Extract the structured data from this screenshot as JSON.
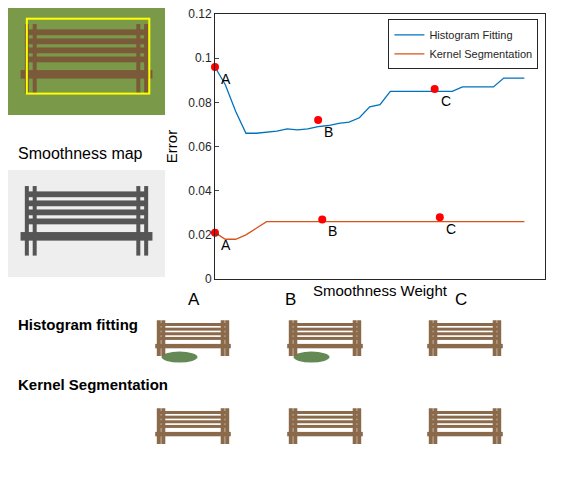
{
  "chart_data": {
    "type": "line",
    "x_label": "Smoothness Weight",
    "y_label": "Error",
    "x": [
      0,
      1,
      2,
      3,
      4,
      5,
      6,
      7,
      8,
      9,
      10,
      11,
      12,
      13,
      14,
      15,
      16,
      17,
      18,
      19,
      20,
      21,
      22,
      23,
      24,
      25,
      26,
      27,
      28,
      29,
      30
    ],
    "series": [
      {
        "name": "Histogram Fitting",
        "color": "#0072bd",
        "values": [
          0.096,
          0.088,
          0.076,
          0.066,
          0.066,
          0.0665,
          0.067,
          0.068,
          0.0675,
          0.068,
          0.069,
          0.0695,
          0.0705,
          0.071,
          0.073,
          0.078,
          0.079,
          0.085,
          0.085,
          0.085,
          0.085,
          0.085,
          0.085,
          0.085,
          0.087,
          0.087,
          0.087,
          0.087,
          0.091,
          0.091,
          0.091
        ]
      },
      {
        "name": "Kernel Segmentation",
        "color": "#d95319",
        "values": [
          0.021,
          0.018,
          0.018,
          0.02,
          0.023,
          0.026,
          0.026,
          0.026,
          0.026,
          0.026,
          0.026,
          0.026,
          0.026,
          0.026,
          0.026,
          0.026,
          0.026,
          0.026,
          0.026,
          0.026,
          0.026,
          0.026,
          0.026,
          0.026,
          0.026,
          0.026,
          0.026,
          0.026,
          0.026,
          0.026,
          0.026
        ]
      }
    ],
    "annotations": [
      {
        "text": "A",
        "x": 0,
        "y": 0.096
      },
      {
        "text": "B",
        "x": 10,
        "y": 0.072
      },
      {
        "text": "C",
        "x": 21.3,
        "y": 0.086
      },
      {
        "text": "A",
        "x": 0,
        "y": 0.021
      },
      {
        "text": "B",
        "x": 10.4,
        "y": 0.027
      },
      {
        "text": "C",
        "x": 21.8,
        "y": 0.028
      }
    ],
    "xlim": [
      0,
      32
    ],
    "xticks": [],
    "ylim": [
      0,
      0.12
    ],
    "yticks": [
      0,
      0.02,
      0.04,
      0.06,
      0.08,
      0.1,
      0.12
    ],
    "tick_labels": "y",
    "grid": false,
    "legend": "upper right"
  },
  "figure": {
    "side_caption": "Smoothness map",
    "result_columns": [
      "A",
      "B",
      "C"
    ],
    "result_rows": [
      "Histogram fitting",
      "Kernel Segmentation"
    ]
  }
}
